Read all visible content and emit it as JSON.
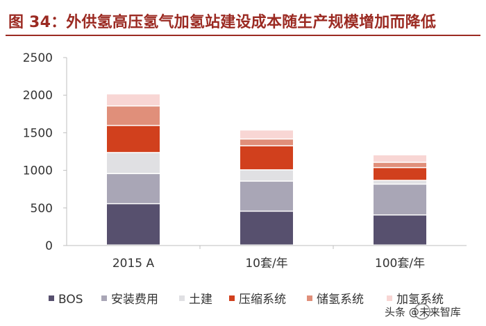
{
  "page": {
    "title": "图 34：外供氢高压氢气加氢站建设成本随生产规模增加而降低",
    "watermark": "头条 @未来智库"
  },
  "chart_data": {
    "type": "bar",
    "stacked": true,
    "title": "图 34：外供氢高压氢气加氢站建设成本随生产规模增加而降低",
    "categories": [
      "2015 A",
      "10套/年",
      "100套/年"
    ],
    "ylim": [
      0,
      2500
    ],
    "yticks": [
      0,
      500,
      1000,
      1500,
      2000,
      2500
    ],
    "grid": false,
    "legend_position": "bottom",
    "series": [
      {
        "name": "BOS",
        "color": "#57506e",
        "values": [
          550,
          450,
          400
        ]
      },
      {
        "name": "安装费用",
        "color": "#a9a6b6",
        "values": [
          400,
          400,
          410
        ]
      },
      {
        "name": "土建",
        "color": "#e0e0e3",
        "values": [
          280,
          150,
          50
        ]
      },
      {
        "name": "压缩系统",
        "color": "#d1401d",
        "values": [
          360,
          320,
          170
        ]
      },
      {
        "name": "储氢系统",
        "color": "#e08f7a",
        "values": [
          260,
          90,
          70
        ]
      },
      {
        "name": "加氢系统",
        "color": "#f8d6d4",
        "values": [
          160,
          120,
          100
        ]
      }
    ]
  }
}
